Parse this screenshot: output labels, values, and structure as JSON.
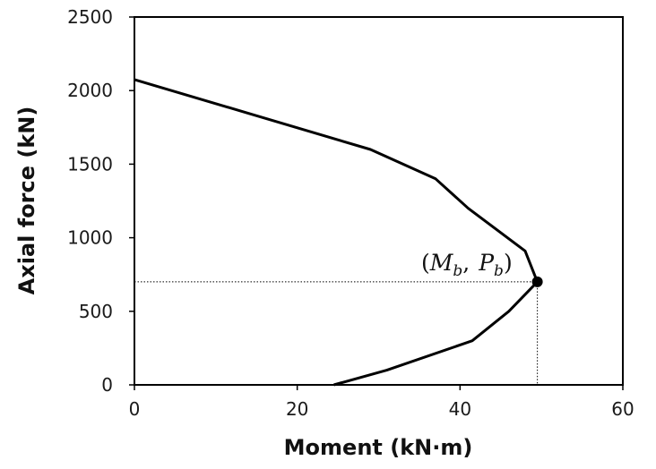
{
  "chart_data": {
    "type": "line",
    "title": "",
    "xlabel": "Moment (kN·m)",
    "ylabel": "Axial force (kN)",
    "xlim": [
      0,
      60
    ],
    "ylim": [
      0,
      2500
    ],
    "x_ticks": [
      "0",
      "20",
      "40",
      "60"
    ],
    "y_ticks": [
      "0",
      "500",
      "1000",
      "1500",
      "2000",
      "2500"
    ],
    "grid": false,
    "series": [
      {
        "color": "#000000",
        "x": [
          0,
          29,
          37,
          41,
          48,
          49.5,
          46,
          41.5,
          31,
          24.5
        ],
        "y": [
          2075,
          1600,
          1400,
          1200,
          910,
          700,
          500,
          300,
          100,
          0
        ]
      }
    ],
    "balance_point": {
      "x": 49.5,
      "y": 700
    },
    "annotation": {
      "open": "(",
      "m": "M",
      "m_sub": "b",
      "comma": ",",
      "p": "P",
      "p_sub": "b",
      "close": ")"
    }
  }
}
